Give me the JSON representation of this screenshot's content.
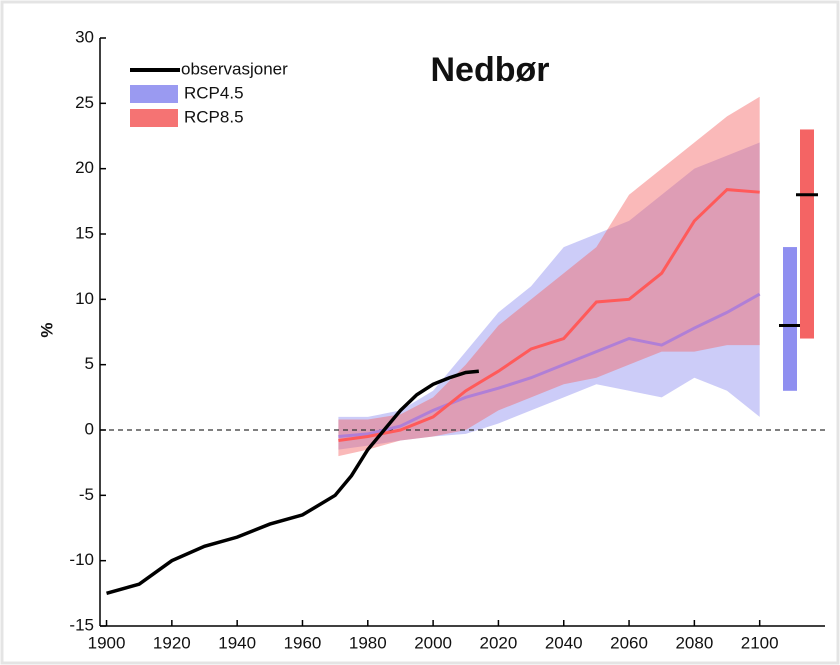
{
  "chart_data": {
    "type": "line",
    "title": "Nedbør",
    "y_label": "%",
    "xlim": [
      1898,
      2120
    ],
    "ylim": [
      -15,
      30
    ],
    "xticks": [
      1900,
      1920,
      1940,
      1960,
      1980,
      2000,
      2020,
      2040,
      2060,
      2080,
      2100
    ],
    "yticks": [
      -15,
      -10,
      -5,
      0,
      5,
      10,
      15,
      20,
      25,
      30
    ],
    "reference_line": 0,
    "series": [
      {
        "name": "observasjoner",
        "color": "#000000",
        "x": [
          1900,
          1910,
          1920,
          1930,
          1940,
          1950,
          1960,
          1970,
          1975,
          1980,
          1985,
          1990,
          1995,
          2000,
          2005,
          2010,
          2014
        ],
        "values": [
          -12.5,
          -11.8,
          -10,
          -8.9,
          -8.2,
          -7.2,
          -6.5,
          -5,
          -3.5,
          -1.5,
          0,
          1.5,
          2.7,
          3.5,
          4,
          4.4,
          4.5
        ]
      },
      {
        "name": "RCP4.5",
        "color": "#8f8ff0",
        "line_color": "#b07fd6",
        "x": [
          1971,
          1980,
          1990,
          2000,
          2010,
          2020,
          2030,
          2040,
          2050,
          2060,
          2070,
          2080,
          2090,
          2100
        ],
        "values": [
          -0.5,
          -0.3,
          0.3,
          1.5,
          2.5,
          3.2,
          4,
          5,
          6,
          7,
          6.5,
          7.8,
          9,
          10.4
        ],
        "lower": [
          -1.5,
          -1.2,
          -0.8,
          -0.5,
          -0.3,
          0.5,
          1.5,
          2.5,
          3.5,
          3,
          2.5,
          4,
          3,
          1
        ],
        "upper": [
          1,
          1,
          1.5,
          3,
          6,
          9,
          11,
          14,
          15,
          16,
          18,
          20,
          21,
          22
        ],
        "range": [
          3,
          14
        ],
        "range_median": 8
      },
      {
        "name": "RCP8.5",
        "color": "#f46464",
        "line_color": "#ff5a5a",
        "x": [
          1971,
          1980,
          1990,
          2000,
          2010,
          2020,
          2030,
          2040,
          2050,
          2060,
          2070,
          2080,
          2090,
          2100
        ],
        "values": [
          -0.8,
          -0.5,
          0,
          1,
          3,
          4.5,
          6.2,
          7,
          9.8,
          10,
          12,
          16,
          18.4,
          18.2
        ],
        "lower": [
          -2,
          -1.5,
          -0.8,
          -0.5,
          0,
          1.5,
          2.5,
          3.5,
          4,
          5,
          6,
          6,
          6.5,
          6.5
        ],
        "upper": [
          0.8,
          0.8,
          1.2,
          2.5,
          5,
          8,
          10,
          12,
          14,
          18,
          20,
          22,
          24,
          25.5
        ],
        "range": [
          7,
          23
        ],
        "range_median": 18
      }
    ]
  }
}
